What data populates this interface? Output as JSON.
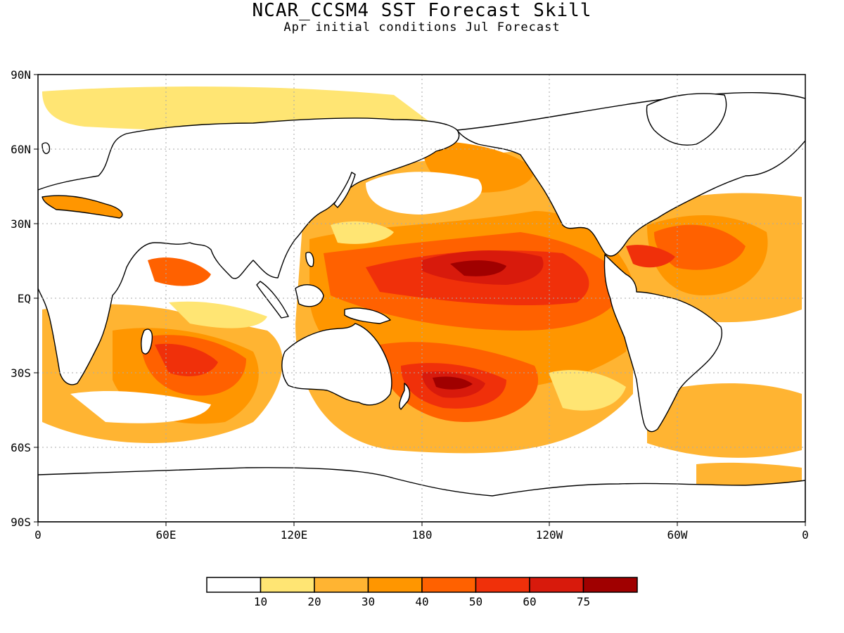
{
  "title": "NCAR_CCSM4 SST Forecast Skill",
  "subtitle": "Apr initial conditions  Jul Forecast",
  "lat_labels": [
    "90N",
    "60N",
    "30N",
    "EQ",
    "30S",
    "60S",
    "90S"
  ],
  "lon_labels": [
    "0",
    "60E",
    "120E",
    "180",
    "120W",
    "60W",
    "0"
  ],
  "legend": {
    "bins": [
      {
        "color": "#ffffff"
      },
      {
        "color": "#ffe573"
      },
      {
        "color": "#ffb432"
      },
      {
        "color": "#ff9600"
      },
      {
        "color": "#ff6100"
      },
      {
        "color": "#f0300a"
      },
      {
        "color": "#d81a0c"
      },
      {
        "color": "#a00000"
      }
    ],
    "ticks": [
      "10",
      "20",
      "30",
      "40",
      "50",
      "60",
      "75"
    ]
  },
  "colors": {
    "land": "#ffffff",
    "coast": "#000000",
    "grid": "#aaaaaa"
  }
}
